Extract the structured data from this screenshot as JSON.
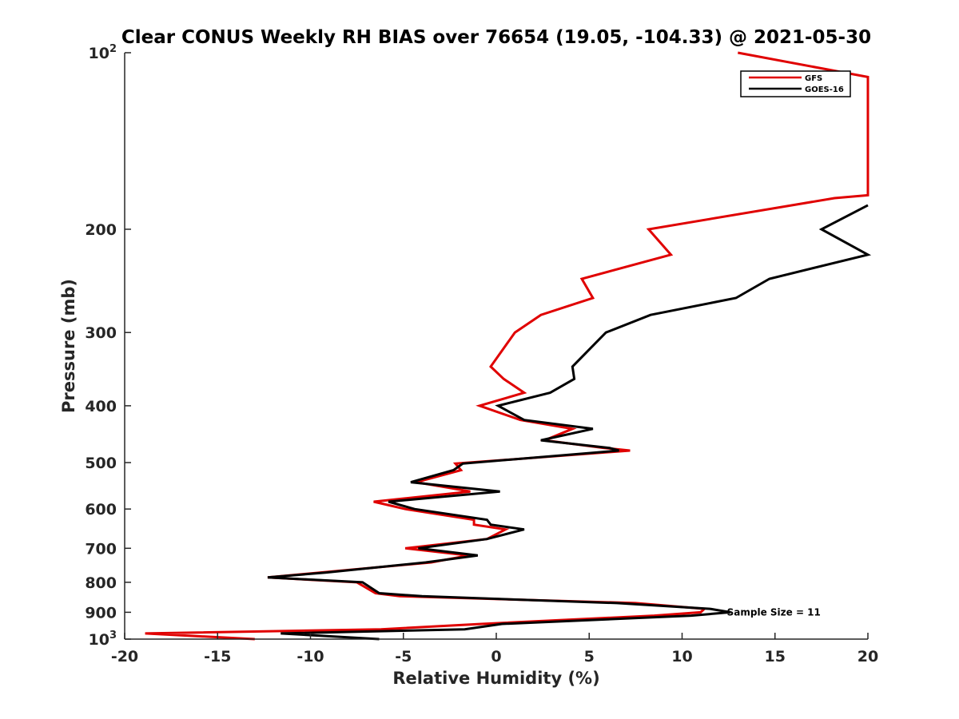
{
  "chart_data": {
    "type": "line",
    "title": "Clear CONUS Weekly RH BIAS over 76654 (19.05, -104.33) @ 2021-05-30",
    "xlabel": "Relative Humidity (%)",
    "ylabel": "Pressure (mb)",
    "xlim": [
      -20,
      20
    ],
    "ylim": [
      100,
      1000
    ],
    "y_scale": "log",
    "y_reversed": true,
    "grid": false,
    "legend_position": "top-right",
    "x_ticks": [
      -20,
      -15,
      -10,
      -5,
      0,
      5,
      10,
      15,
      20
    ],
    "x_tick_labels": [
      "-20",
      "-15",
      "-10",
      "-5",
      "0",
      "5",
      "10",
      "15",
      "20"
    ],
    "y_ticks": [
      100,
      200,
      300,
      400,
      500,
      600,
      700,
      800,
      900,
      1000
    ],
    "y_tick_labels": [
      {
        "base": "10",
        "sup": "2"
      },
      {
        "base": "200"
      },
      {
        "base": "300"
      },
      {
        "base": "400"
      },
      {
        "base": "500"
      },
      {
        "base": "600"
      },
      {
        "base": "700"
      },
      {
        "base": "800"
      },
      {
        "base": "900"
      },
      {
        "base": "10",
        "sup": "3"
      }
    ],
    "annotation": {
      "text": "Sample Size = 11",
      "x": 12.5,
      "y": 900
    },
    "series": [
      {
        "name": "GFS",
        "color": "#e00000",
        "points": [
          [
            13,
            100
          ],
          [
            20,
            110
          ],
          [
            20,
            175
          ],
          [
            18.2,
            177
          ],
          [
            8.2,
            200
          ],
          [
            9.4,
            221
          ],
          [
            4.6,
            243
          ],
          [
            5.2,
            262
          ],
          [
            2.4,
            280
          ],
          [
            1,
            300
          ],
          [
            -0.3,
            343
          ],
          [
            0.4,
            360
          ],
          [
            1.5,
            380
          ],
          [
            -0.9,
            400
          ],
          [
            1.3,
            423
          ],
          [
            4.1,
            438
          ],
          [
            2.6,
            458
          ],
          [
            5.8,
            472
          ],
          [
            7.2,
            477
          ],
          [
            -2.2,
            502
          ],
          [
            -1.9,
            515
          ],
          [
            -4.3,
            540
          ],
          [
            -1.4,
            560
          ],
          [
            -6.6,
            583
          ],
          [
            -4.9,
            600
          ],
          [
            -1.2,
            626
          ],
          [
            -1.2,
            638
          ],
          [
            0.5,
            650
          ],
          [
            -0.5,
            675
          ],
          [
            -4.9,
            700
          ],
          [
            -1.5,
            720
          ],
          [
            -3.5,
            740
          ],
          [
            -9.5,
            770
          ],
          [
            -12.3,
            785
          ],
          [
            -7.5,
            800
          ],
          [
            -6.5,
            835
          ],
          [
            -5.2,
            845
          ],
          [
            7.5,
            868
          ],
          [
            11.2,
            888
          ],
          [
            11.0,
            900
          ],
          [
            8.5,
            912
          ],
          [
            -0.8,
            942
          ],
          [
            -6.2,
            962
          ],
          [
            -18.9,
            978
          ],
          [
            -13,
            1000
          ]
        ]
      },
      {
        "name": "GOES-16",
        "color": "#000000",
        "points": [
          [
            20,
            182
          ],
          [
            17.5,
            200
          ],
          [
            20,
            221
          ],
          [
            14.7,
            243
          ],
          [
            12.9,
            262
          ],
          [
            8.3,
            280
          ],
          [
            5.9,
            300
          ],
          [
            4.1,
            343
          ],
          [
            4.2,
            360
          ],
          [
            2.9,
            380
          ],
          [
            0.1,
            400
          ],
          [
            1.5,
            423
          ],
          [
            5.2,
            438
          ],
          [
            2.4,
            458
          ],
          [
            6.1,
            472
          ],
          [
            6.6,
            477
          ],
          [
            -1.8,
            502
          ],
          [
            -2.3,
            515
          ],
          [
            -4.6,
            540
          ],
          [
            0.2,
            560
          ],
          [
            -5.8,
            583
          ],
          [
            -4.4,
            600
          ],
          [
            -0.5,
            626
          ],
          [
            -0.3,
            638
          ],
          [
            1.5,
            650
          ],
          [
            -0.5,
            675
          ],
          [
            -4.2,
            700
          ],
          [
            -1.0,
            720
          ],
          [
            -3.8,
            740
          ],
          [
            -9.2,
            770
          ],
          [
            -12.3,
            785
          ],
          [
            -7.2,
            800
          ],
          [
            -6.3,
            835
          ],
          [
            -4.0,
            845
          ],
          [
            6.5,
            868
          ],
          [
            11.5,
            888
          ],
          [
            12.6,
            900
          ],
          [
            10.5,
            912
          ],
          [
            0.3,
            942
          ],
          [
            -1.7,
            962
          ],
          [
            -11.6,
            978
          ],
          [
            -6.3,
            1000
          ]
        ]
      }
    ]
  }
}
